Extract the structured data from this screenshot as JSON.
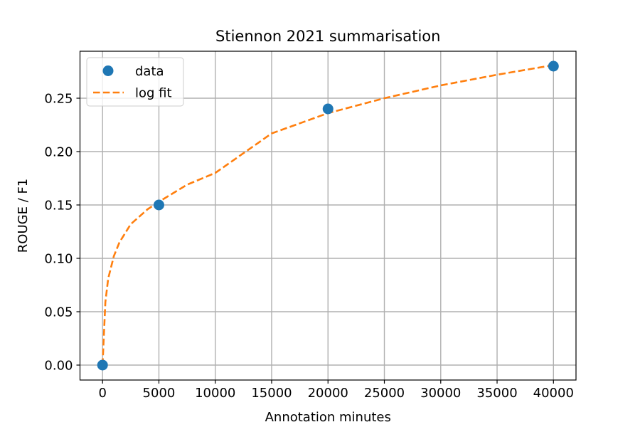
{
  "chart_data": {
    "type": "scatter",
    "title": "Stiennon 2021 summarisation",
    "xlabel": "Annotation minutes",
    "ylabel": "ROUGE / F1",
    "xlim": [
      -2000,
      42000
    ],
    "ylim": [
      -0.014,
      0.294
    ],
    "x_ticks": [
      0,
      5000,
      10000,
      15000,
      20000,
      25000,
      30000,
      35000,
      40000
    ],
    "x_tick_labels": [
      "0",
      "5000",
      "10000",
      "15000",
      "20000",
      "25000",
      "30000",
      "35000",
      "40000"
    ],
    "y_ticks": [
      0.0,
      0.05,
      0.1,
      0.15,
      0.2,
      0.25
    ],
    "y_tick_labels": [
      "0.00",
      "0.05",
      "0.10",
      "0.15",
      "0.20",
      "0.25"
    ],
    "grid": true,
    "legend_position": "top-left",
    "series": [
      {
        "name": "data",
        "kind": "points",
        "color": "#1f77b4",
        "x": [
          0,
          5000,
          20000,
          40000
        ],
        "y": [
          0.0,
          0.15,
          0.24,
          0.28
        ]
      },
      {
        "name": "log fit",
        "kind": "dashed-line",
        "color": "#ff7f0e",
        "x": [
          0,
          250,
          500,
          1000,
          1500,
          2500,
          4000,
          5000,
          7500,
          10000,
          15000,
          20000,
          25000,
          30000,
          35000,
          40000
        ],
        "y": [
          0.0,
          0.059,
          0.081,
          0.102,
          0.115,
          0.132,
          0.146,
          0.153,
          0.169,
          0.18,
          0.217,
          0.236,
          0.25,
          0.262,
          0.272,
          0.281
        ]
      }
    ]
  }
}
